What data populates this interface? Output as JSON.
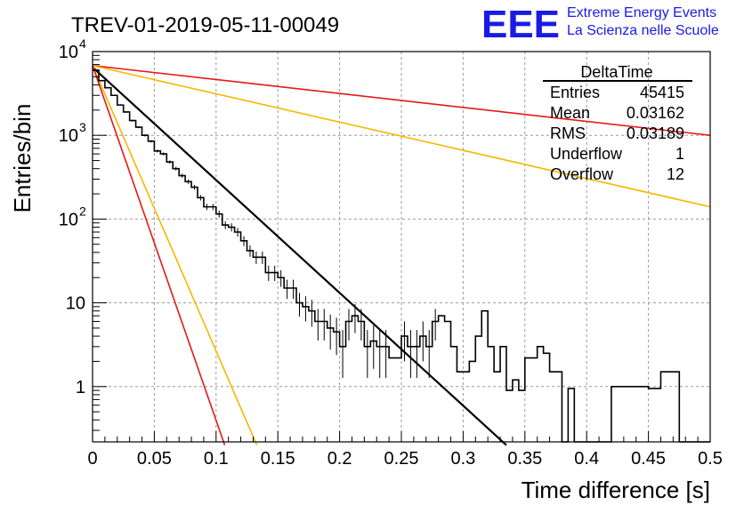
{
  "title": "TREV-01-2019-05-11-00049",
  "logo": {
    "mark": "EEE",
    "line1": "Extreme Energy Events",
    "line2": "La Scienza nelle Scuole",
    "color": "#1a1ae6"
  },
  "stats": {
    "name": "DeltaTime",
    "rows": [
      {
        "label": "Entries",
        "value": "45415"
      },
      {
        "label": "Mean",
        "value": "0.03162"
      },
      {
        "label": "RMS",
        "value": "0.03189"
      },
      {
        "label": "Underflow",
        "value": "1"
      },
      {
        "label": "Overflow",
        "value": "12"
      }
    ]
  },
  "chart_data": {
    "type": "line",
    "xlabel": "Time difference [s]",
    "ylabel": "Entries/bin",
    "xlim": [
      0,
      0.5
    ],
    "ylim": [
      0.2,
      12000
    ],
    "yscale": "log",
    "grid": true,
    "x_ticks": [
      {
        "v": 0,
        "label": "0"
      },
      {
        "v": 0.05,
        "label": "0.05"
      },
      {
        "v": 0.1,
        "label": "0.1"
      },
      {
        "v": 0.15,
        "label": "0.15"
      },
      {
        "v": 0.2,
        "label": "0.2"
      },
      {
        "v": 0.25,
        "label": "0.25"
      },
      {
        "v": 0.3,
        "label": "0.3"
      },
      {
        "v": 0.35,
        "label": "0.35"
      },
      {
        "v": 0.4,
        "label": "0.4"
      },
      {
        "v": 0.45,
        "label": "0.45"
      },
      {
        "v": 0.5,
        "label": "0.5"
      }
    ],
    "y_ticks": [
      {
        "v": 1,
        "label": "1"
      },
      {
        "v": 10,
        "label": "10"
      },
      {
        "v": 100,
        "label": "10",
        "exp": "2"
      },
      {
        "v": 1000,
        "label": "10",
        "exp": "3"
      },
      {
        "v": 10000,
        "label": "10",
        "exp": "4"
      }
    ],
    "histogram": {
      "bin_width": 0.005,
      "color": "#000000",
      "counts": [
        6000,
        4500,
        3700,
        3000,
        2300,
        1900,
        1500,
        1250,
        1000,
        850,
        650,
        600,
        480,
        400,
        330,
        280,
        240,
        180,
        140,
        140,
        115,
        85,
        80,
        70,
        55,
        42,
        35,
        35,
        23,
        23,
        20,
        15,
        15,
        10,
        9,
        8,
        6,
        6,
        5,
        4.5,
        3,
        6,
        7,
        6,
        3,
        3.5,
        3,
        3,
        2.2,
        2.2,
        4,
        3,
        3,
        4,
        3,
        6,
        7,
        6,
        3,
        1.5,
        1.5,
        2,
        4,
        8,
        3,
        1.5,
        3,
        0.9,
        1.2,
        0.9,
        2.2,
        2.2,
        3,
        2.5,
        1.5,
        1.5,
        0,
        0.95,
        0,
        0,
        0,
        0,
        0,
        0,
        1,
        1,
        1,
        1,
        1,
        1,
        0.95,
        0.95,
        1.5,
        1.5,
        1.5,
        0,
        0.15,
        0,
        0,
        0,
        0,
        0,
        0,
        0,
        0,
        0,
        0
      ],
      "error_bars": true
    },
    "lines": [
      {
        "type": "fit",
        "color": "#000000",
        "x": [
          0,
          0.335
        ],
        "y": [
          6500,
          0.2
        ],
        "width": 2.2
      },
      {
        "type": "limit",
        "color": "#e61717",
        "x": [
          0,
          0.5
        ],
        "y": [
          6800,
          1000
        ],
        "width": 1.6
      },
      {
        "type": "limit",
        "color": "#f5b800",
        "x": [
          0,
          0.5
        ],
        "y": [
          6800,
          140
        ],
        "width": 1.6
      },
      {
        "type": "limit",
        "color": "#f5b800",
        "x": [
          0,
          0.133
        ],
        "y": [
          6800,
          0.2
        ],
        "width": 1.6
      },
      {
        "type": "limit",
        "color": "#e61717",
        "x": [
          0,
          0.107
        ],
        "y": [
          6800,
          0.2
        ],
        "width": 1.6
      }
    ]
  }
}
